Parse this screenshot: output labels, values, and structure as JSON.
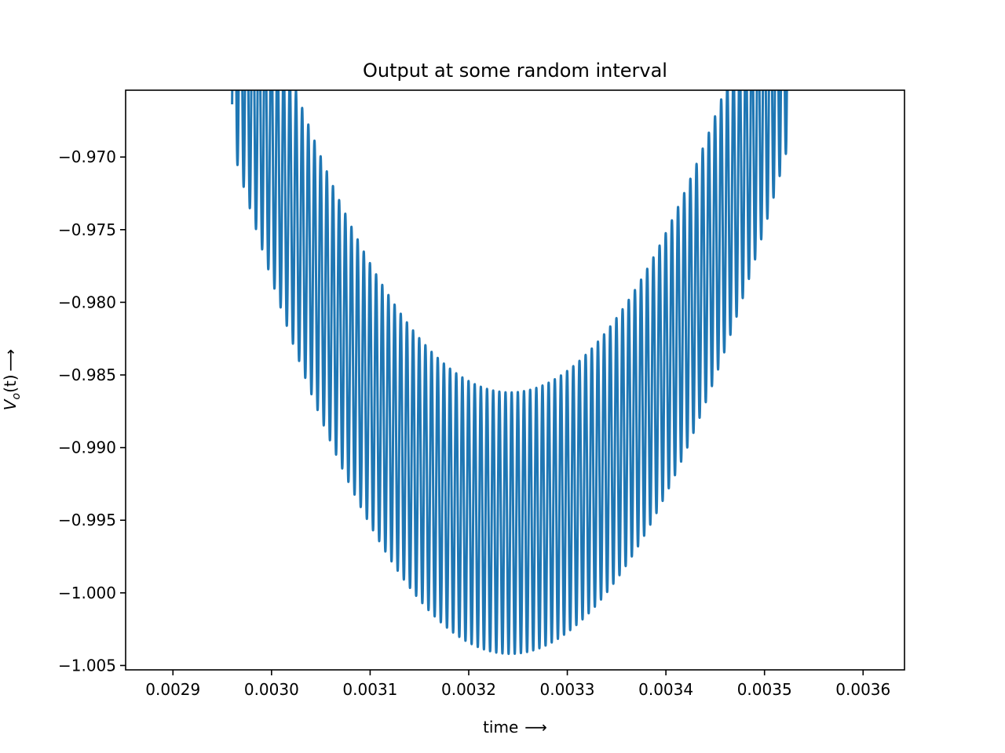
{
  "chart_data": {
    "type": "line",
    "title": "Output at some random interval",
    "xlabel": "time",
    "xlabel_arrow": "⟶",
    "ylabel": "V",
    "ylabel_sub": "o",
    "ylabel_paren": "(t)",
    "ylabel_arrow": "⟶",
    "xlim": [
      0.002852,
      0.003642
    ],
    "ylim": [
      -1.0053,
      -0.9654
    ],
    "xticks": [
      0.0029,
      0.003,
      0.0031,
      0.0032,
      0.0033,
      0.0034,
      0.0035,
      0.0036
    ],
    "xtick_labels": [
      "0.0029",
      "0.0030",
      "0.0031",
      "0.0032",
      "0.0033",
      "0.0034",
      "0.0035",
      "0.0036"
    ],
    "yticks": [
      -0.97,
      -0.975,
      -0.98,
      -0.985,
      -0.99,
      -0.995,
      -1.0,
      -1.005
    ],
    "ytick_labels": [
      "−0.970",
      "−0.975",
      "−0.980",
      "−0.985",
      "−0.990",
      "−0.995",
      "−1.000",
      "−1.005"
    ],
    "grid": false,
    "legend": "none",
    "series": [
      {
        "color": "#1f77b4",
        "envelope_center_x": 0.003242,
        "envelope_min_y": -0.9952,
        "envelope_curvature": 440000,
        "oscillation_amplitude": 0.009,
        "oscillation_period": 6.25e-06,
        "x_start": 0.00296,
        "x_end": 0.003525
      }
    ]
  }
}
